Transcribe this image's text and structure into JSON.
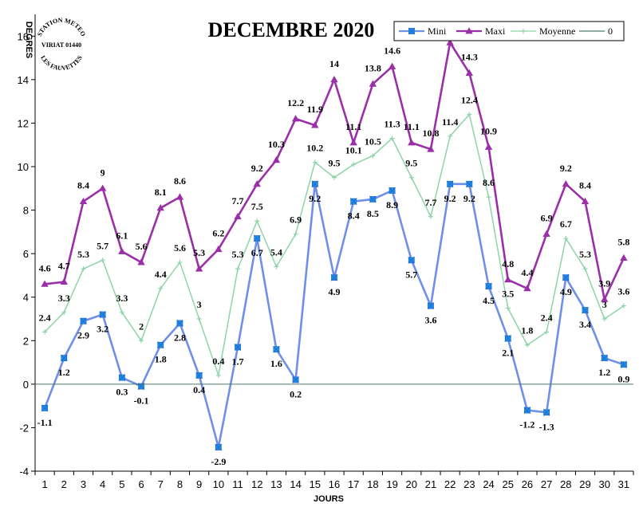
{
  "chart_data": {
    "type": "line",
    "title": "DECEMBRE 2020",
    "xlabel": "JOURS",
    "ylabel": "DEGRES",
    "ylim": [
      -4,
      17
    ],
    "yticks": [
      -4,
      -2,
      0,
      2,
      4,
      6,
      8,
      10,
      12,
      14,
      16
    ],
    "x": [
      1,
      2,
      3,
      4,
      5,
      6,
      7,
      8,
      9,
      10,
      11,
      12,
      13,
      14,
      15,
      16,
      17,
      18,
      19,
      20,
      21,
      22,
      23,
      24,
      25,
      26,
      27,
      28,
      29,
      30,
      31
    ],
    "legend_position": "top-right",
    "series": [
      {
        "name": "Mini",
        "color": "#6f8fe8",
        "marker": "square-star",
        "values": [
          -1.1,
          1.2,
          2.9,
          3.2,
          0.3,
          -0.1,
          1.8,
          2.8,
          0.4,
          -2.9,
          1.7,
          6.7,
          1.6,
          0.2,
          9.2,
          4.9,
          8.4,
          8.5,
          8.9,
          5.7,
          3.6,
          9.2,
          9.2,
          4.5,
          2.1,
          -1.2,
          -1.3,
          4.9,
          3.4,
          1.2,
          0.9
        ]
      },
      {
        "name": "Maxi",
        "color": "#9b2fa8",
        "marker": "triangle",
        "values": [
          4.6,
          4.7,
          8.4,
          9,
          6.1,
          5.6,
          8.1,
          8.6,
          5.3,
          6.2,
          7.7,
          9.2,
          10.3,
          12.2,
          11.9,
          14,
          11.1,
          13.8,
          14.6,
          11.1,
          10.8,
          15.7,
          14.3,
          10.9,
          4.8,
          4.4,
          6.9,
          9.2,
          8.4,
          3.9,
          5.8
        ]
      },
      {
        "name": "Moyenne",
        "color": "#8fd4a8",
        "marker": "plus",
        "values": [
          2.4,
          3.3,
          5.3,
          5.7,
          3.3,
          2,
          4.4,
          5.6,
          3,
          0.4,
          5.3,
          7.5,
          5.4,
          6.9,
          10.2,
          9.5,
          10.1,
          10.5,
          11.3,
          9.5,
          7.7,
          11.4,
          12.4,
          8.6,
          3.5,
          1.8,
          2.4,
          6.7,
          5.3,
          3,
          3.6
        ]
      },
      {
        "name": "0",
        "color": "#4f7a6a",
        "marker": "none",
        "values": [
          0,
          0,
          0,
          0,
          0,
          0,
          0,
          0,
          0,
          0,
          0,
          0,
          0,
          0,
          0,
          0,
          0,
          0,
          0,
          0,
          0,
          0,
          0,
          0,
          0,
          0,
          0,
          0,
          0,
          0,
          0
        ]
      }
    ]
  },
  "stamp": {
    "line1": "STATION METEO",
    "line2": "VIRIAT 01440",
    "line3": "LES FAUVETTES"
  }
}
